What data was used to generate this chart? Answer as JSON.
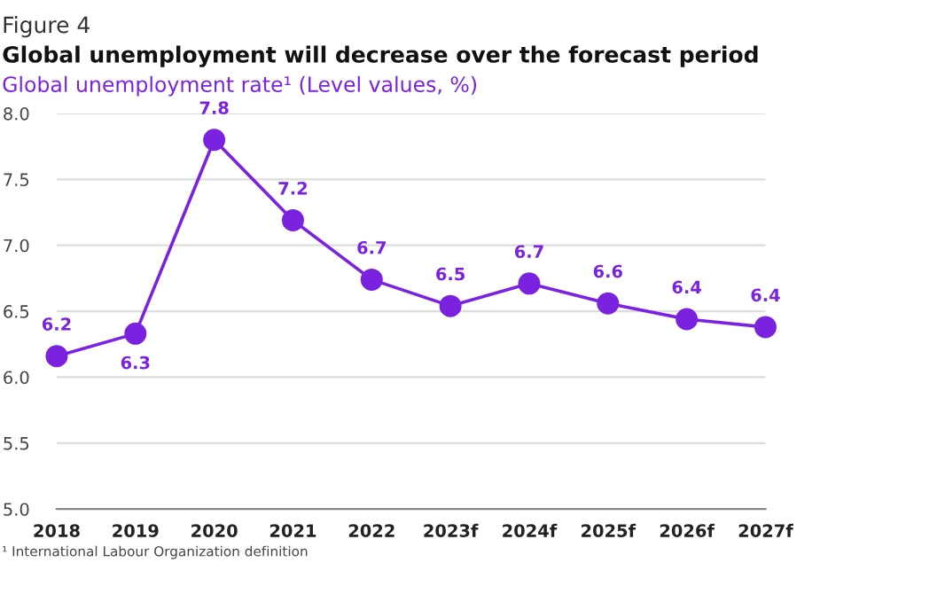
{
  "chart_data": {
    "type": "line",
    "title": "Figure 4",
    "subtitle": "Global unemployment will decrease over the forecast period",
    "ylabel": "Global unemployment rate¹ (Level values, %)",
    "annotations": [
      "¹ International Labour Organization definition"
    ],
    "categories": [
      "2018",
      "2019",
      "2020",
      "2021",
      "2022",
      "2023f",
      "2024f",
      "2025f",
      "2026f",
      "2027f"
    ],
    "series": [
      {
        "color": "#7b22e0",
        "values": [
          6.16,
          6.33,
          7.8,
          7.19,
          6.74,
          6.54,
          6.71,
          6.56,
          6.44,
          6.38
        ],
        "value_labels": [
          "6.2",
          "6.3",
          "7.8",
          "7.2",
          "6.7",
          "6.5",
          "6.7",
          "6.6",
          "6.4",
          "6.4"
        ]
      }
    ],
    "ylim": [
      5.0,
      8.0
    ],
    "yticks": [
      {
        "value": 5.0,
        "label": "5.0"
      },
      {
        "value": 5.5,
        "label": "5.5"
      },
      {
        "value": 6.0,
        "label": "6.0"
      },
      {
        "value": 6.5,
        "label": "6.5"
      },
      {
        "value": 7.0,
        "label": "7.0"
      },
      {
        "value": 7.5,
        "label": "7.5"
      },
      {
        "value": 8.0,
        "label": "8.0"
      }
    ],
    "grid": "y",
    "marker": "circle",
    "line_style": "solid",
    "legend": false
  }
}
